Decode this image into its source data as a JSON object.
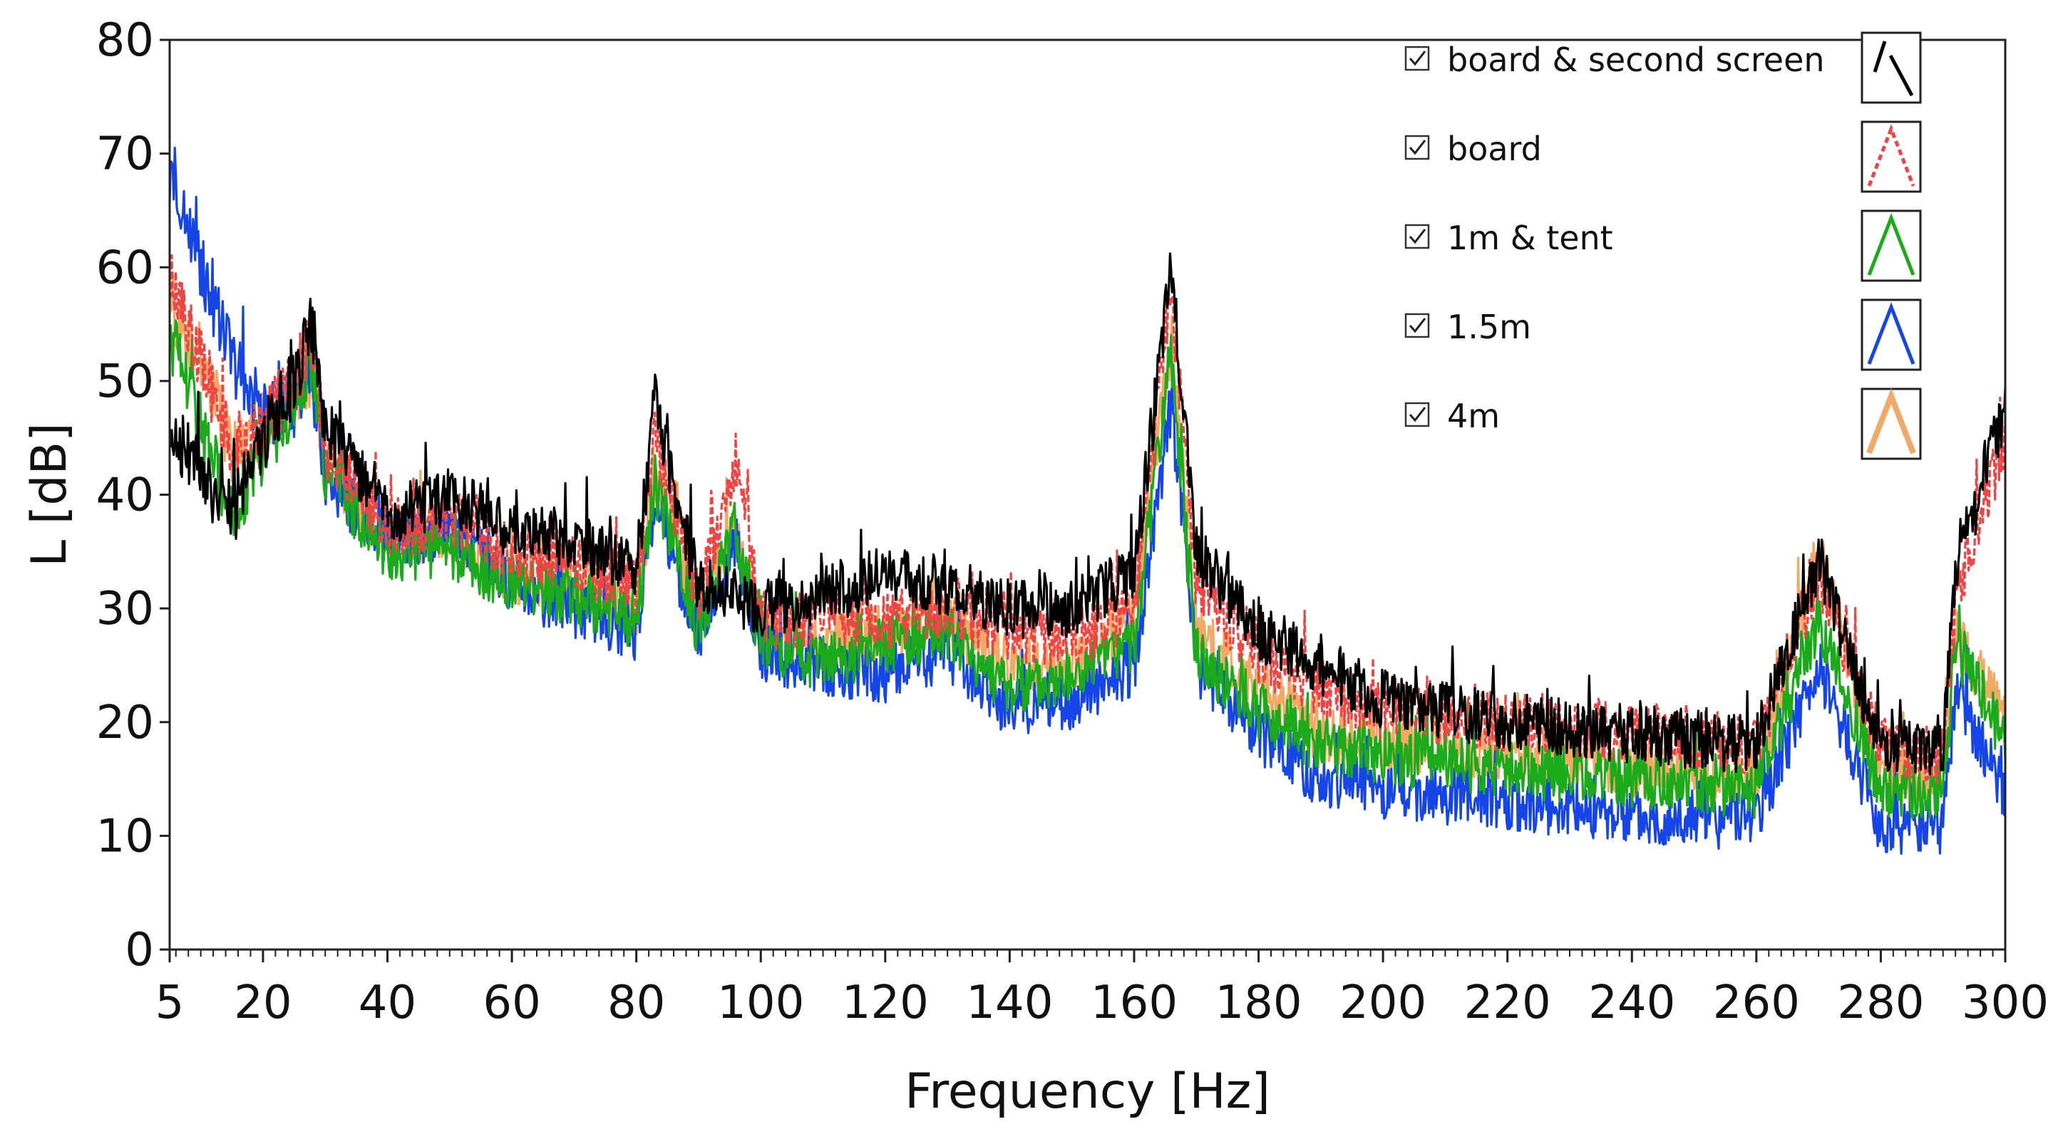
{
  "chart_data": {
    "type": "line",
    "title": "",
    "xlabel": "Frequency [Hz]",
    "ylabel": "L [dB]",
    "xlim": [
      5,
      300
    ],
    "ylim": [
      0,
      80
    ],
    "x_ticks": [
      5,
      20,
      40,
      60,
      80,
      100,
      120,
      140,
      160,
      180,
      200,
      220,
      240,
      260,
      280,
      300
    ],
    "y_ticks": [
      0,
      10,
      20,
      30,
      40,
      50,
      60,
      70,
      80
    ],
    "legend_position": "top-right",
    "x": [
      5,
      10,
      15,
      20,
      25,
      28,
      30,
      40,
      50,
      60,
      70,
      80,
      83,
      90,
      96,
      100,
      110,
      120,
      130,
      140,
      150,
      160,
      166,
      170,
      180,
      190,
      200,
      220,
      240,
      260,
      270,
      280,
      290,
      292,
      300
    ],
    "series": [
      {
        "name": "board & second screen",
        "color": "#000000",
        "style": "solid",
        "values": [
          46,
          42,
          38,
          45,
          50,
          55,
          46,
          38,
          40,
          37,
          36,
          33,
          48,
          32,
          31,
          30,
          31,
          33,
          32,
          30,
          30,
          33,
          60,
          35,
          28,
          25,
          22,
          20,
          19,
          18,
          34,
          18,
          18,
          33,
          48
        ]
      },
      {
        "name": "board",
        "color": "#ee4444",
        "style": "dashed",
        "values": [
          58,
          52,
          44,
          46,
          50,
          54,
          44,
          37,
          38,
          35,
          34,
          32,
          45,
          31,
          43,
          29,
          29,
          29,
          30,
          28,
          27,
          30,
          58,
          32,
          26,
          23,
          21,
          20,
          19,
          18,
          33,
          18,
          17,
          31,
          45
        ]
      },
      {
        "name": "1m & tent",
        "color": "#1aaa1a",
        "style": "solid",
        "values": [
          54,
          46,
          38,
          44,
          48,
          52,
          42,
          35,
          35,
          32,
          31,
          29,
          41,
          28,
          37,
          27,
          25,
          27,
          28,
          23,
          24,
          27,
          52,
          26,
          21,
          18,
          17,
          16,
          15,
          14,
          29,
          14,
          14,
          27,
          18
        ]
      },
      {
        "name": "1.5m",
        "color": "#1545e6",
        "style": "solid",
        "values": [
          67,
          60,
          52,
          47,
          48,
          50,
          41,
          36,
          37,
          32,
          30,
          28,
          40,
          27,
          36,
          26,
          25,
          24,
          26,
          21,
          22,
          25,
          48,
          25,
          19,
          15,
          14,
          13,
          12,
          11,
          25,
          11,
          11,
          23,
          14
        ]
      },
      {
        "name": "4m",
        "color": "#f3a966",
        "style": "solid",
        "values": [
          57,
          52,
          44,
          46,
          49,
          51,
          43,
          36,
          37,
          33,
          32,
          30,
          42,
          29,
          37,
          28,
          27,
          28,
          29,
          25,
          25,
          29,
          54,
          28,
          23,
          19,
          18,
          17,
          16,
          15,
          35,
          15,
          15,
          28,
          20
        ]
      }
    ]
  }
}
